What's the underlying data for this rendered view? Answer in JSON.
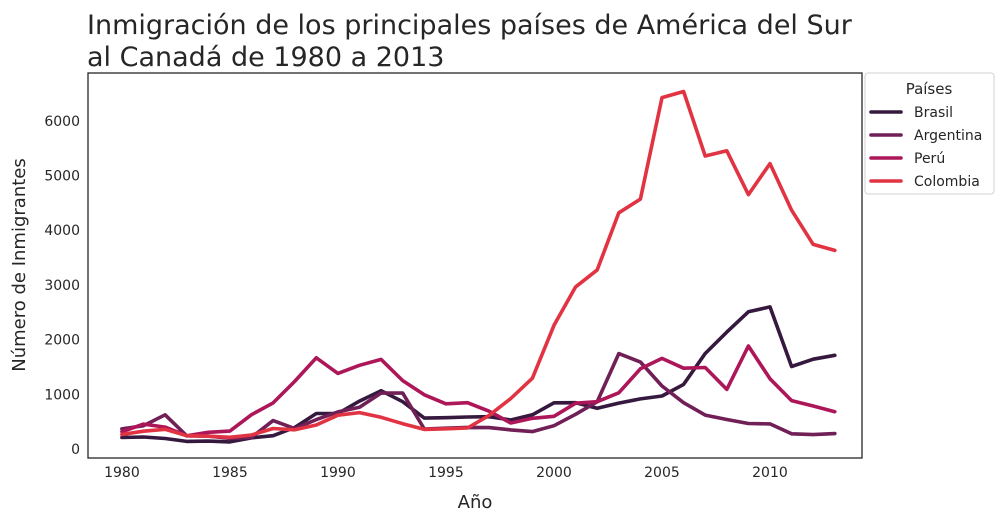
{
  "chart_data": {
    "type": "line",
    "title_lines": [
      "Inmigración de los principales países de América del Sur",
      "al Canadá de 1980 a 2013"
    ],
    "xlabel": "Año",
    "ylabel": "Número de Inmigrantes",
    "xlim": [
      1978.43,
      2014.26
    ],
    "ylim": [
      -164,
      6874
    ],
    "xticks": [
      1980,
      1985,
      1990,
      1995,
      2000,
      2005,
      2010
    ],
    "yticks": [
      0,
      1000,
      2000,
      3000,
      4000,
      5000,
      6000
    ],
    "grid": false,
    "legend": {
      "title": "Países",
      "placement": "outside-top-right"
    },
    "x": [
      1980,
      1981,
      1982,
      1983,
      1984,
      1985,
      1986,
      1987,
      1988,
      1989,
      1990,
      1991,
      1992,
      1993,
      1994,
      1995,
      1996,
      1997,
      1998,
      1999,
      2000,
      2001,
      2002,
      2003,
      2004,
      2005,
      2006,
      2007,
      2008,
      2009,
      2010,
      2011,
      2012,
      2013
    ],
    "series": [
      {
        "name": "Brasil",
        "color": "#35193e",
        "values": [
          211,
          220,
          192,
          139,
          145,
          130,
          205,
          244,
          394,
          650,
          650,
          877,
          1066,
          866,
          566,
          572,
          586,
          591,
          531,
          626,
          845,
          847,
          745,
          839,
          917,
          969,
          1181,
          1746,
          2138,
          2509,
          2598,
          1508,
          1642,
          1714
        ]
      },
      {
        "name": "Argentina",
        "color": "#701f57",
        "values": [
          368,
          426,
          626,
          241,
          237,
          196,
          213,
          519,
          374,
          538,
          678,
          763,
          1023,
          1022,
          366,
          380,
          396,
          391,
          349,
          318,
          427,
          635,
          865,
          1745,
          1591,
          1153,
          847,
          620,
          540,
          467,
          459,
          278,
          263,
          282
        ]
      },
      {
        "name": "Perú",
        "color": "#ad1759",
        "values": [
          317,
          456,
          401,
          241,
          306,
          328,
          628,
          843,
          1237,
          1667,
          1383,
          1530,
          1638,
          1251,
          992,
          826,
          846,
          692,
          476,
          562,
          598,
          838,
          865,
          1027,
          1467,
          1656,
          1477,
          1490,
          1090,
          1884,
          1283,
          886,
          787,
          682
        ]
      },
      {
        "name": "Colombia",
        "color": "#e13342",
        "values": [
          266,
          326,
          360,
          244,
          235,
          214,
          257,
          376,
          352,
          439,
          618,
          666,
          580,
          463,
          358,
          370,
          384,
          614,
          924,
          1295,
          2261,
          2964,
          3275,
          4319,
          4568,
          6424,
          6535,
          5357,
          5452,
          4652,
          5218,
          4366,
          3741,
          3631
        ]
      }
    ]
  }
}
